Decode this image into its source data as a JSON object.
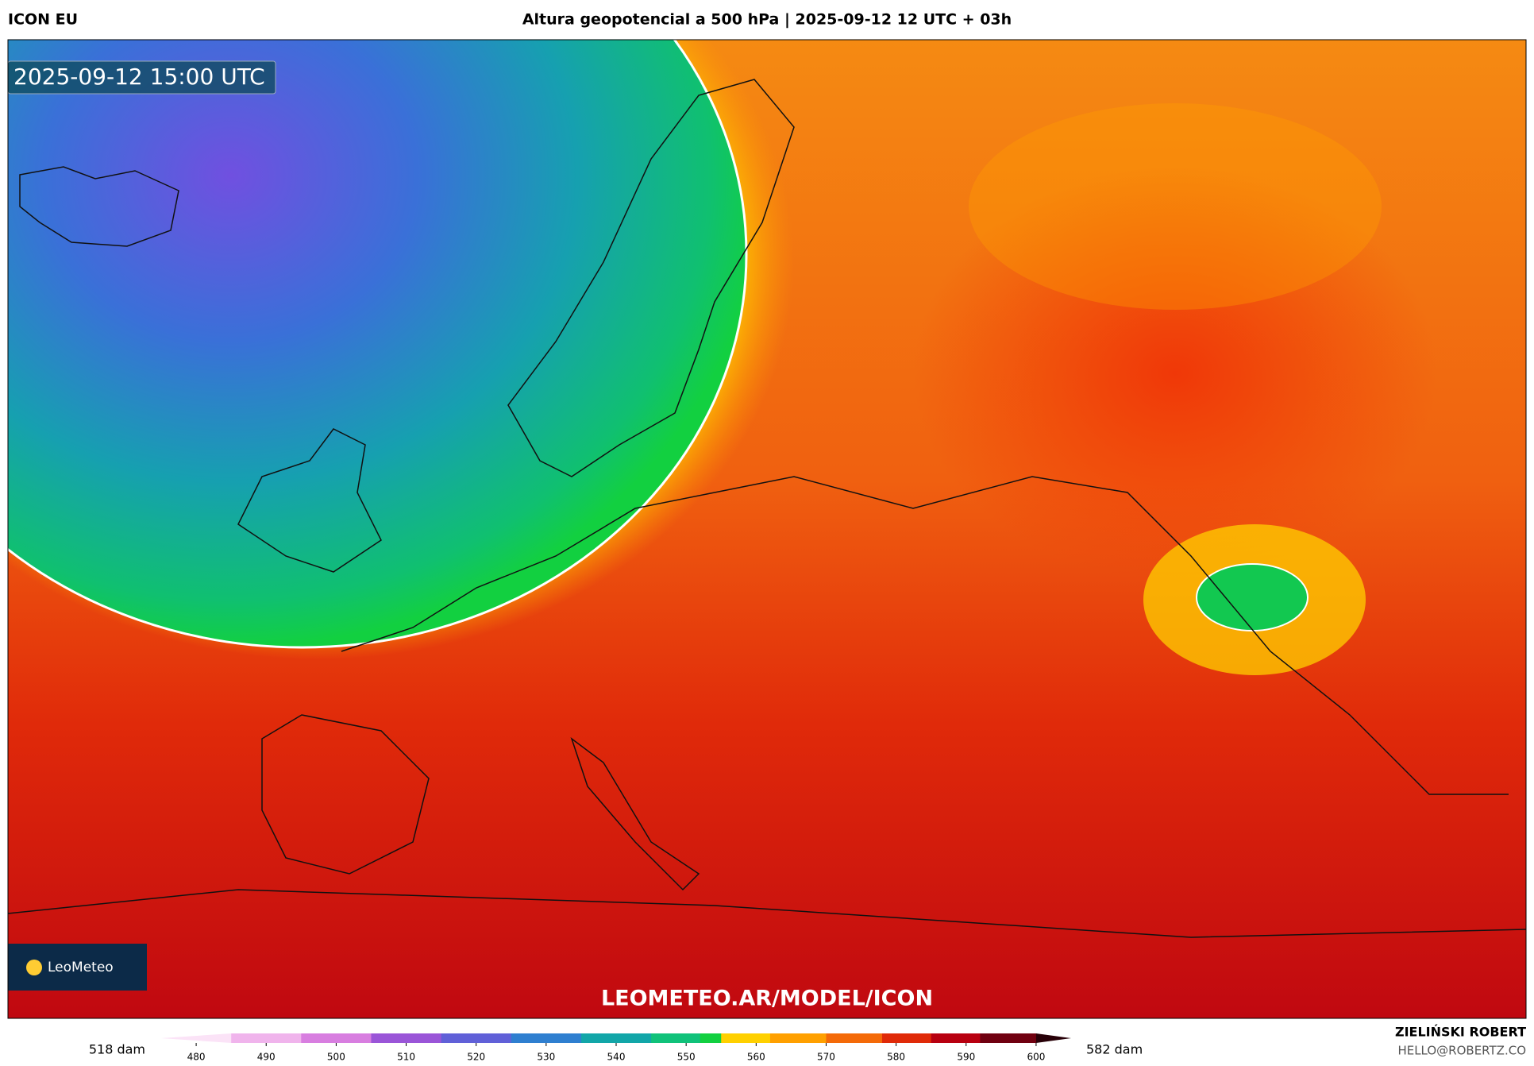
{
  "header": {
    "model": "ICON EU",
    "title": "Altura geopotencial a 500 hPa | 2025-09-12 12 UTC + 03h"
  },
  "map": {
    "timestamp": "2025-09-12 15:00 UTC",
    "watermark": "LEOMETEO.AR/MODEL/ICON",
    "logo": "LeoMeteo"
  },
  "colorbar": {
    "min_label": "518 dam",
    "max_label": "582 dam",
    "xlim": [
      475,
      605
    ],
    "xticks": [
      480,
      490,
      500,
      510,
      520,
      530,
      540,
      550,
      560,
      570,
      580,
      590,
      600
    ],
    "color_stops": [
      {
        "value": 475,
        "color": "#fbe3f7"
      },
      {
        "value": 485,
        "color": "#f0b4ec"
      },
      {
        "value": 495,
        "color": "#d87ee0"
      },
      {
        "value": 505,
        "color": "#9a55d8"
      },
      {
        "value": 515,
        "color": "#6060d8"
      },
      {
        "value": 525,
        "color": "#2f7fd0"
      },
      {
        "value": 535,
        "color": "#12a6a8"
      },
      {
        "value": 545,
        "color": "#10c27a"
      },
      {
        "value": 552,
        "color": "#12d040"
      },
      {
        "value": 555,
        "color": "#ffd000"
      },
      {
        "value": 562,
        "color": "#ffa000"
      },
      {
        "value": 570,
        "color": "#f46a08"
      },
      {
        "value": 578,
        "color": "#e02a08"
      },
      {
        "value": 585,
        "color": "#b80010"
      },
      {
        "value": 592,
        "color": "#700010"
      },
      {
        "value": 600,
        "color": "#280008"
      },
      {
        "value": 605,
        "color": "#000000"
      }
    ]
  },
  "credits": {
    "author": "ZIELIŃSKI ROBERT",
    "email": "HELLO@ROBERTZ.CO"
  }
}
